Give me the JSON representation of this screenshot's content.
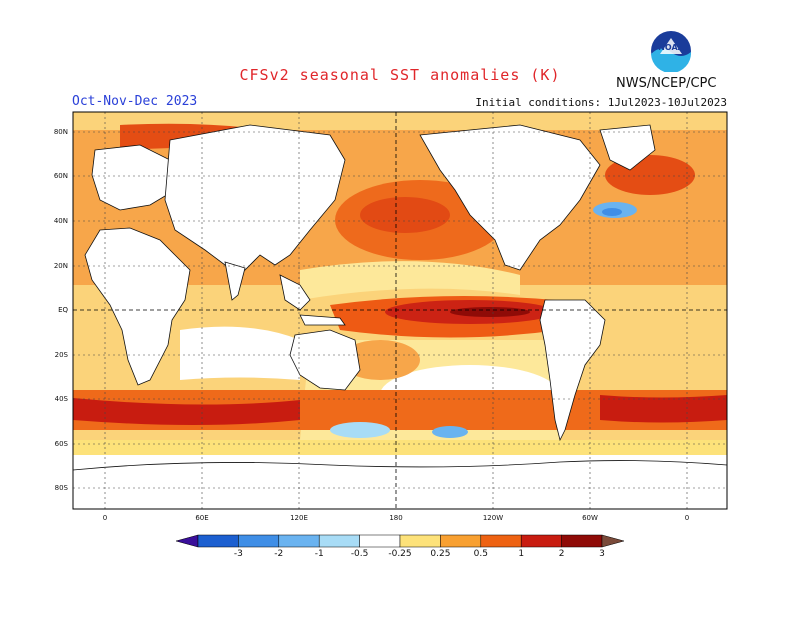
{
  "header": {
    "title": "CFSv2 seasonal SST anomalies (K)",
    "season": "Oct-Nov-Dec 2023",
    "initial_conditions": "Initial conditions: 1Jul2023-10Jul2023",
    "agency": "NWS/NCEP/CPC",
    "logo_text": "NOAA"
  },
  "axes": {
    "lat_ticks": [
      "80N",
      "60N",
      "40N",
      "20N",
      "EQ",
      "20S",
      "40S",
      "60S",
      "80S"
    ],
    "lon_ticks": [
      "0",
      "60E",
      "120E",
      "180",
      "120W",
      "60W",
      "0"
    ]
  },
  "colorbar": {
    "labels": [
      "-3",
      "-2",
      "-1",
      "-0.5",
      "-0.25",
      "0.25",
      "0.5",
      "1",
      "2",
      "3"
    ],
    "colors": [
      "#3a0f9a",
      "#1c5fd0",
      "#3f8ee6",
      "#6ab3f0",
      "#a8dcf6",
      "#ffffff",
      "#fde27a",
      "#f8a031",
      "#ee6212",
      "#c81c10",
      "#8f0b07",
      "#7a4a3a"
    ]
  }
}
